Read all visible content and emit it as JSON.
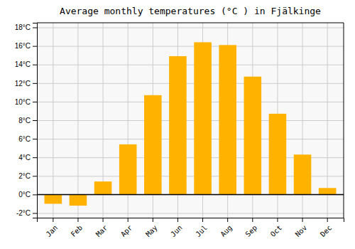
{
  "chart_data": {
    "type": "bar",
    "title": "Average monthly temperatures (°C ) in Fjälkinge",
    "categories": [
      "Jan",
      "Feb",
      "Mar",
      "Apr",
      "May",
      "Jun",
      "Jul",
      "Aug",
      "Sep",
      "Oct",
      "Nov",
      "Dec"
    ],
    "values": [
      -1.0,
      -1.2,
      1.4,
      5.4,
      10.7,
      14.9,
      16.4,
      16.1,
      12.7,
      8.7,
      4.3,
      0.7
    ],
    "color": "#FFB300",
    "ylim": [
      -2.5,
      18.5
    ],
    "yticks": [
      {
        "value": -2,
        "label": "-2°C"
      },
      {
        "value": 0,
        "label": "0°C"
      },
      {
        "value": 2,
        "label": "2°C"
      },
      {
        "value": 4,
        "label": "4°C"
      },
      {
        "value": 6,
        "label": "6°C"
      },
      {
        "value": 8,
        "label": "8°C"
      },
      {
        "value": 10,
        "label": "10°C"
      },
      {
        "value": 12,
        "label": "12°C"
      },
      {
        "value": 14,
        "label": "14°C"
      },
      {
        "value": 16,
        "label": "16°C"
      },
      {
        "value": 18,
        "label": "18°C"
      }
    ],
    "grid": true
  }
}
